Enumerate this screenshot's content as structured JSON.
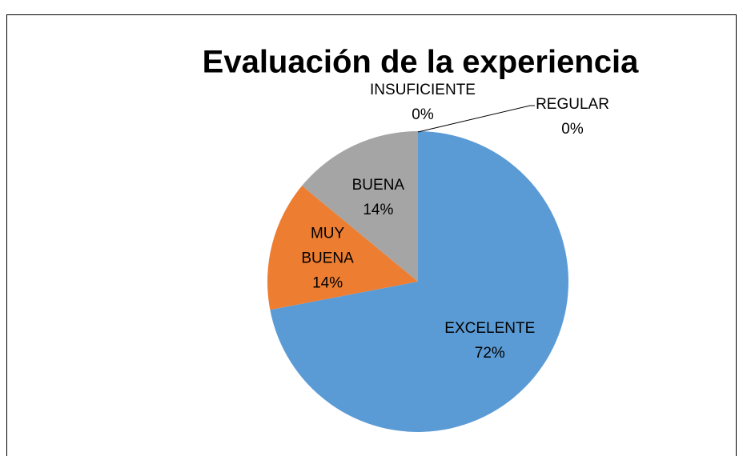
{
  "chart_data": {
    "type": "pie",
    "title": "Evaluación de la experiencia",
    "categories": [
      "EXCELENTE",
      "MUY BUENA",
      "BUENA",
      "INSUFICIENTE",
      "REGULAR"
    ],
    "values": [
      72,
      14,
      14,
      0,
      0
    ],
    "value_labels": [
      "72%",
      "14%",
      "14%",
      "0%",
      "0%"
    ],
    "colors": [
      "#5b9bd5",
      "#ed7d31",
      "#a5a5a5",
      "#ffc000",
      "#4472c4"
    ]
  }
}
